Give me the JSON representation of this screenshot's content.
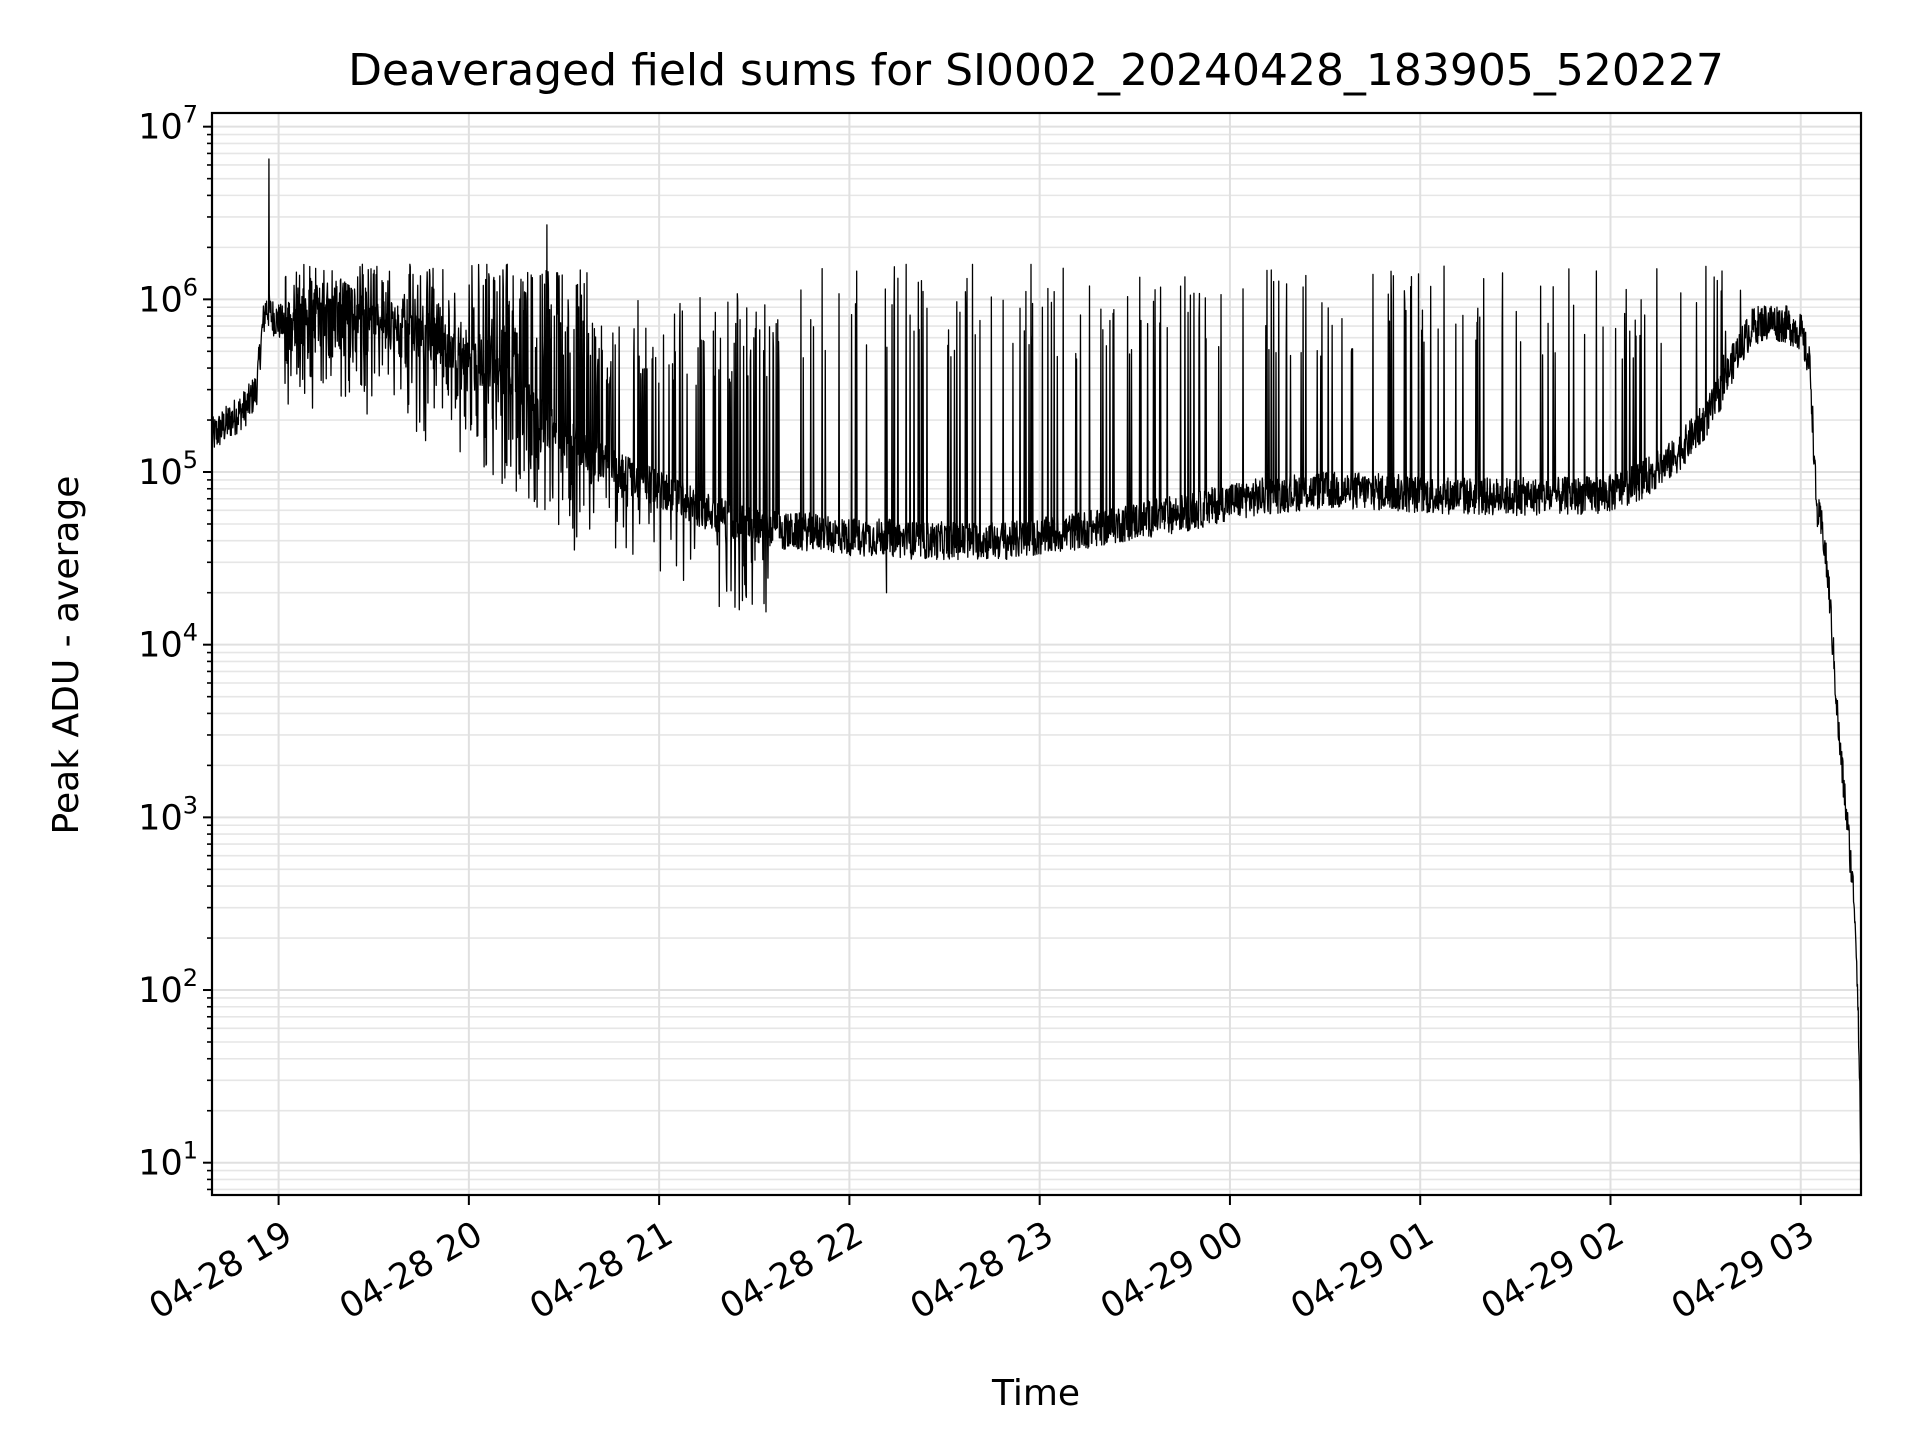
{
  "chart_data": {
    "type": "line",
    "title": "Deaveraged field sums for SI0002_20240428_183905_520227",
    "xlabel": "Time",
    "ylabel": "Peak ADU - average",
    "yscale": "log",
    "ylim": [
      6.5,
      12000000
    ],
    "xlim": [
      "2024-04-28 18:39",
      "2024-04-29 03:19"
    ],
    "grid": true,
    "line_color": "#000000",
    "x_ticks": [
      "04-28 19",
      "04-28 20",
      "04-28 21",
      "04-28 22",
      "04-28 23",
      "04-29 00",
      "04-29 01",
      "04-29 02",
      "04-29 03"
    ],
    "y_ticks": [
      {
        "value": 10,
        "base": "10",
        "exp": "1"
      },
      {
        "value": 100,
        "base": "10",
        "exp": "2"
      },
      {
        "value": 1000,
        "base": "10",
        "exp": "3"
      },
      {
        "value": 10000,
        "base": "10",
        "exp": "4"
      },
      {
        "value": 100000,
        "base": "10",
        "exp": "5"
      },
      {
        "value": 1000000,
        "base": "10",
        "exp": "6"
      },
      {
        "value": 10000000,
        "base": "10",
        "exp": "7"
      }
    ],
    "series": [
      {
        "x": [
          "2024-04-28 18:39",
          "2024-04-28 18:45",
          "2024-04-28 18:50",
          "2024-04-28 18:53",
          "2024-04-28 18:55",
          "2024-04-28 18:56",
          "2024-04-28 18:58",
          "2024-04-28 19:02",
          "2024-04-28 19:05",
          "2024-04-28 19:10",
          "2024-04-28 19:15",
          "2024-04-28 19:20",
          "2024-04-28 19:25",
          "2024-04-28 19:30",
          "2024-04-28 19:35",
          "2024-04-28 19:40",
          "2024-04-28 19:45",
          "2024-04-28 19:50",
          "2024-04-28 19:55",
          "2024-04-28 20:00",
          "2024-04-28 20:05",
          "2024-04-28 20:10",
          "2024-04-28 20:15",
          "2024-04-28 20:20",
          "2024-04-28 20:25",
          "2024-04-28 20:30",
          "2024-04-28 20:40",
          "2024-04-28 20:50",
          "2024-04-28 21:00",
          "2024-04-28 21:10",
          "2024-04-28 21:20",
          "2024-04-28 21:30",
          "2024-04-28 21:40",
          "2024-04-28 21:50",
          "2024-04-28 22:00",
          "2024-04-28 22:10",
          "2024-04-28 22:20",
          "2024-04-28 22:30",
          "2024-04-28 22:40",
          "2024-04-28 22:50",
          "2024-04-28 23:00",
          "2024-04-28 23:10",
          "2024-04-28 23:20",
          "2024-04-28 23:30",
          "2024-04-28 23:40",
          "2024-04-28 23:50",
          "2024-04-29 00:00",
          "2024-04-29 00:10",
          "2024-04-29 00:20",
          "2024-04-29 00:30",
          "2024-04-29 00:40",
          "2024-04-29 00:50",
          "2024-04-29 01:00",
          "2024-04-29 01:10",
          "2024-04-29 01:20",
          "2024-04-29 01:30",
          "2024-04-29 01:40",
          "2024-04-29 01:50",
          "2024-04-29 02:00",
          "2024-04-29 02:10",
          "2024-04-29 02:20",
          "2024-04-29 02:30",
          "2024-04-29 02:35",
          "2024-04-29 02:40",
          "2024-04-29 02:45",
          "2024-04-29 02:50",
          "2024-04-29 02:55",
          "2024-04-29 03:00",
          "2024-04-29 03:03",
          "2024-04-29 03:05",
          "2024-04-29 03:07",
          "2024-04-29 03:09",
          "2024-04-29 03:12",
          "2024-04-29 03:15",
          "2024-04-29 03:17",
          "2024-04-29 03:18",
          "2024-04-29 03:19"
        ],
        "y": [
          160000,
          200000,
          240000,
          300000,
          700000,
          900000,
          800000,
          700000,
          750000,
          900000,
          1000000,
          1000000,
          900000,
          800000,
          750000,
          700000,
          600000,
          550000,
          500000,
          450000,
          400000,
          350000,
          300000,
          250000,
          200000,
          160000,
          120000,
          95000,
          80000,
          65000,
          55000,
          50000,
          45000,
          45000,
          42000,
          42000,
          40000,
          40000,
          40000,
          40000,
          42000,
          45000,
          48000,
          52000,
          56000,
          60000,
          68000,
          72000,
          76000,
          78000,
          78000,
          76000,
          74000,
          73000,
          72000,
          72000,
          72000,
          73000,
          75000,
          90000,
          120000,
          200000,
          300000,
          500000,
          700000,
          750000,
          720000,
          650000,
          400000,
          60000,
          45000,
          20000,
          3000,
          800,
          300,
          100,
          10
        ]
      }
    ],
    "annotations": [
      "Dense spikes between 04-28 19 and 04-29 02:40 reaching ~2e6",
      "Maximum spike ~6.5e6 near 04-28 18:57"
    ]
  }
}
